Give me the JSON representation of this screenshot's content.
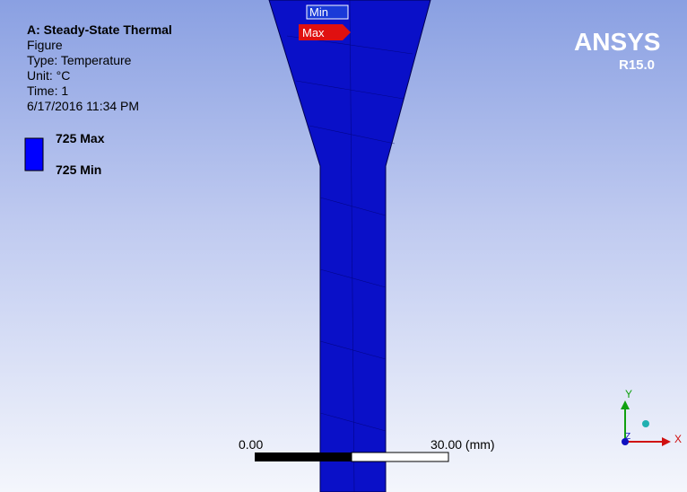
{
  "header": {
    "title": "A: Steady-State Thermal",
    "lines": [
      "Figure",
      "Type: Temperature",
      "Unit: °C",
      "Time: 1",
      "6/17/2016 11:34 PM"
    ]
  },
  "legend": {
    "max": "725 Max",
    "min": "725 Min"
  },
  "brand": {
    "name": "ANSYS",
    "version": "R15.0"
  },
  "probes": {
    "min": "Min",
    "max": "Max"
  },
  "scale": {
    "start": "0.00",
    "end": "30.00 (mm)"
  },
  "triad": {
    "y": "Y",
    "x": "X",
    "z": "Z"
  }
}
